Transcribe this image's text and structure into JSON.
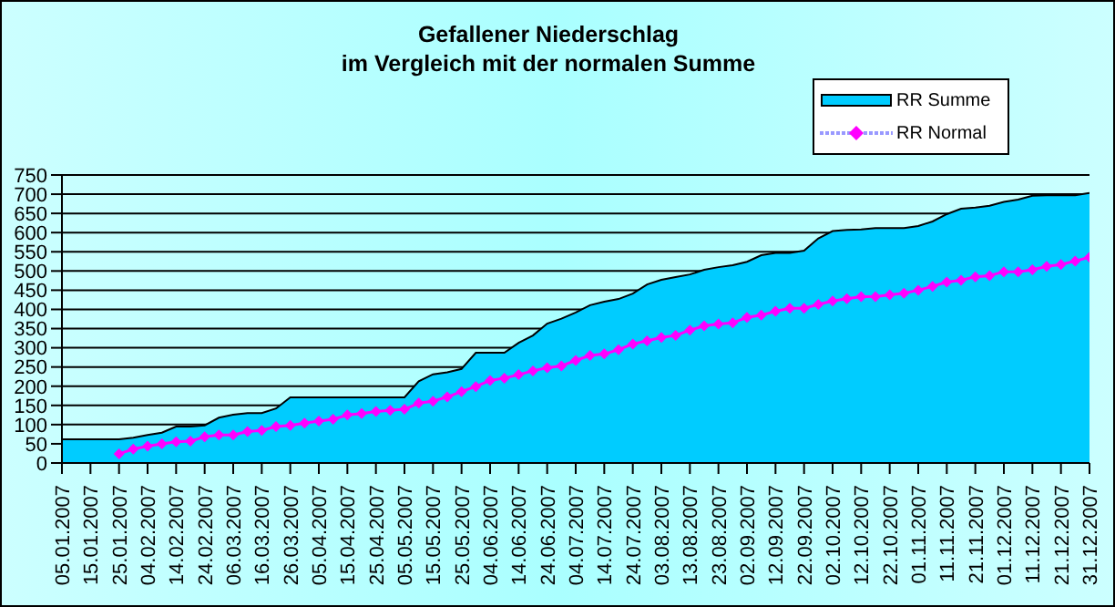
{
  "chart_data": {
    "type": "area",
    "title": "Gefallener Niederschlag\nim Vergleich mit der normalen Summe",
    "categories": [
      "05.01.2007",
      null,
      "15.01.2007",
      null,
      "25.01.2007",
      null,
      "04.02.2007",
      null,
      "14.02.2007",
      null,
      "24.02.2007",
      null,
      "06.03.2007",
      null,
      "16.03.2007",
      null,
      "26.03.2007",
      null,
      "05.04.2007",
      null,
      "15.04.2007",
      null,
      "25.04.2007",
      null,
      "05.05.2007",
      null,
      "15.05.2007",
      null,
      "25.05.2007",
      null,
      "04.06.2007",
      null,
      "14.06.2007",
      null,
      "24.06.2007",
      null,
      "04.07.2007",
      null,
      "14.07.2007",
      null,
      "24.07.2007",
      null,
      "03.08.2007",
      null,
      "13.08.2007",
      null,
      "23.08.2007",
      null,
      "02.09.2007",
      null,
      "12.09.2007",
      null,
      "22.09.2007",
      null,
      "02.10.2007",
      null,
      "12.10.2007",
      null,
      "22.10.2007",
      null,
      "01.11.2007",
      null,
      "11.11.2007",
      null,
      "21.11.2007",
      null,
      "01.12.2007",
      null,
      "11.12.2007",
      null,
      "21.12.2007",
      null,
      "31.12.2007"
    ],
    "series": [
      {
        "name": "RR Summe",
        "color": "#00ccff",
        "values": [
          62,
          62,
          62,
          62,
          62,
          66,
          73,
          79,
          95,
          95,
          98,
          118,
          126,
          130,
          130,
          142,
          171,
          171,
          171,
          171,
          171,
          171,
          171,
          171,
          171,
          213,
          231,
          236,
          245,
          287,
          287,
          287,
          313,
          332,
          363,
          376,
          392,
          411,
          420,
          427,
          441,
          465,
          477,
          484,
          491,
          503,
          510,
          515,
          524,
          541,
          547,
          547,
          553,
          585,
          604,
          607,
          608,
          612,
          612,
          612,
          617,
          629,
          648,
          662,
          665,
          670,
          680,
          686,
          696,
          697,
          697,
          697,
          703
        ]
      },
      {
        "name": "RR Normal",
        "type": "line",
        "color": "#ff00ff",
        "marker": "diamond",
        "values": [
          null,
          null,
          null,
          null,
          24,
          36,
          44,
          50,
          55,
          57,
          68,
          73,
          73,
          82,
          85,
          95,
          98,
          104,
          109,
          114,
          125,
          129,
          134,
          137,
          140,
          156,
          161,
          172,
          186,
          199,
          215,
          221,
          230,
          240,
          248,
          253,
          267,
          280,
          284,
          295,
          310,
          318,
          327,
          332,
          346,
          357,
          362,
          365,
          379,
          385,
          395,
          403,
          403,
          413,
          422,
          428,
          433,
          433,
          438,
          442,
          450,
          460,
          471,
          476,
          485,
          488,
          498,
          498,
          503,
          512,
          517,
          526,
          536
        ]
      }
    ],
    "ylim": [
      0,
      750
    ],
    "yticks": [
      0,
      50,
      100,
      150,
      200,
      250,
      300,
      350,
      400,
      450,
      500,
      550,
      600,
      650,
      700,
      750
    ],
    "grid": "y",
    "legend": "top right"
  }
}
